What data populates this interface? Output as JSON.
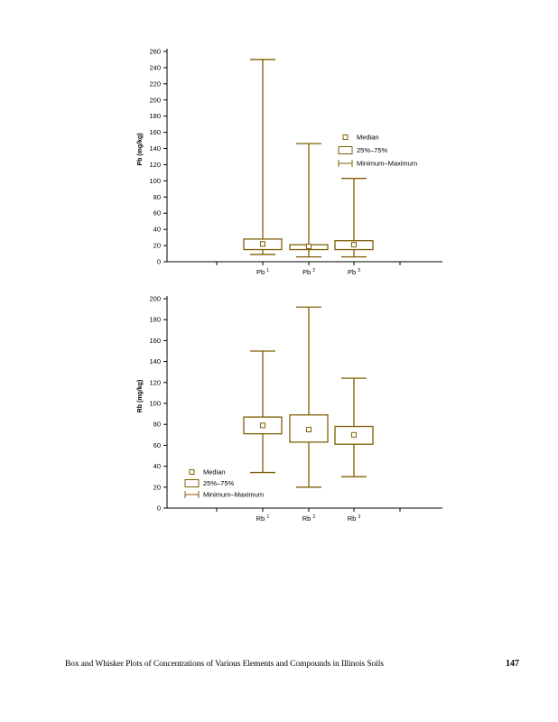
{
  "footer": {
    "caption": "Box and Whisker Plots of Concentrations of Various Elements and Compounds in Illinois Soils",
    "page_number": "147"
  },
  "colors": {
    "box_whisker": "#7f5f06",
    "axis": "#000000",
    "text": "#000000",
    "page_background": "#ffffff"
  },
  "chart_data": [
    {
      "type": "box",
      "title": "",
      "xlabel": "",
      "ylabel": "Pb (mg/kg)",
      "ylim": [
        0,
        260
      ],
      "ytick_step": 20,
      "grid": false,
      "legend_position": "upper-right",
      "categories": [
        {
          "base": "Pb",
          "sup": "1"
        },
        {
          "base": "Pb",
          "sup": "2"
        },
        {
          "base": "Pb",
          "sup": "3"
        }
      ],
      "series": [
        {
          "name": "Pb 1",
          "min": 9,
          "q1": 15,
          "median": 22,
          "q3": 28,
          "max": 250
        },
        {
          "name": "Pb 2",
          "min": 6,
          "q1": 15,
          "median": 19,
          "q3": 21,
          "max": 146
        },
        {
          "name": "Pb 3",
          "min": 6,
          "q1": 15,
          "median": 21,
          "q3": 26,
          "max": 103
        }
      ],
      "legend": {
        "items": [
          "Median",
          "25%–75%",
          "Minimum–Maximum"
        ]
      }
    },
    {
      "type": "box",
      "title": "",
      "xlabel": "",
      "ylabel": "Rb (mg/kg)",
      "ylim": [
        0,
        200
      ],
      "ytick_step": 20,
      "grid": false,
      "legend_position": "lower-left",
      "categories": [
        {
          "base": "Rb",
          "sup": "1"
        },
        {
          "base": "Rb",
          "sup": "2"
        },
        {
          "base": "Rb",
          "sup": "3"
        }
      ],
      "series": [
        {
          "name": "Rb 1",
          "min": 34,
          "q1": 71,
          "median": 79,
          "q3": 87,
          "max": 150
        },
        {
          "name": "Rb 2",
          "min": 20,
          "q1": 63,
          "median": 75,
          "q3": 89,
          "max": 192
        },
        {
          "name": "Rb 3",
          "min": 30,
          "q1": 61,
          "median": 70,
          "q3": 78,
          "max": 124
        }
      ],
      "legend": {
        "items": [
          "Median",
          "25%–75%",
          "Minimum–Maximum"
        ]
      }
    }
  ]
}
